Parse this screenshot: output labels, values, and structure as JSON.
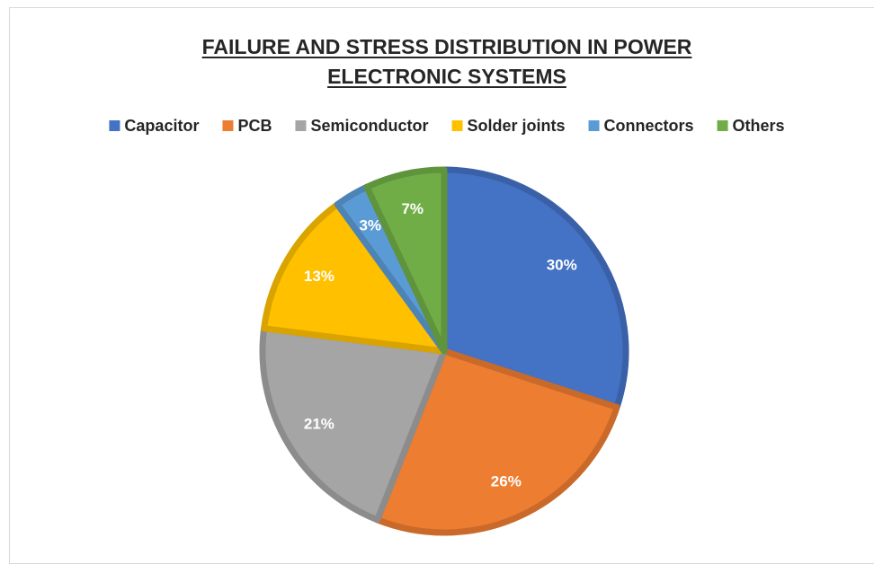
{
  "chart_data": {
    "type": "pie",
    "title": "FAILURE AND STRESS DISTRIBUTION IN POWER ELECTRONIC SYSTEMS",
    "categories": [
      "Capacitor",
      "PCB",
      "Semiconductor",
      "Solder joints",
      "Connectors",
      "Others"
    ],
    "values": [
      30,
      26,
      21,
      13,
      3,
      7
    ],
    "value_labels": [
      "30%",
      "26%",
      "21%",
      "13%",
      "3%",
      "7%"
    ],
    "colors": [
      "#4472c4",
      "#ed7d31",
      "#a5a5a5",
      "#ffc000",
      "#5b9bd5",
      "#70ad47"
    ],
    "legend": "top"
  }
}
